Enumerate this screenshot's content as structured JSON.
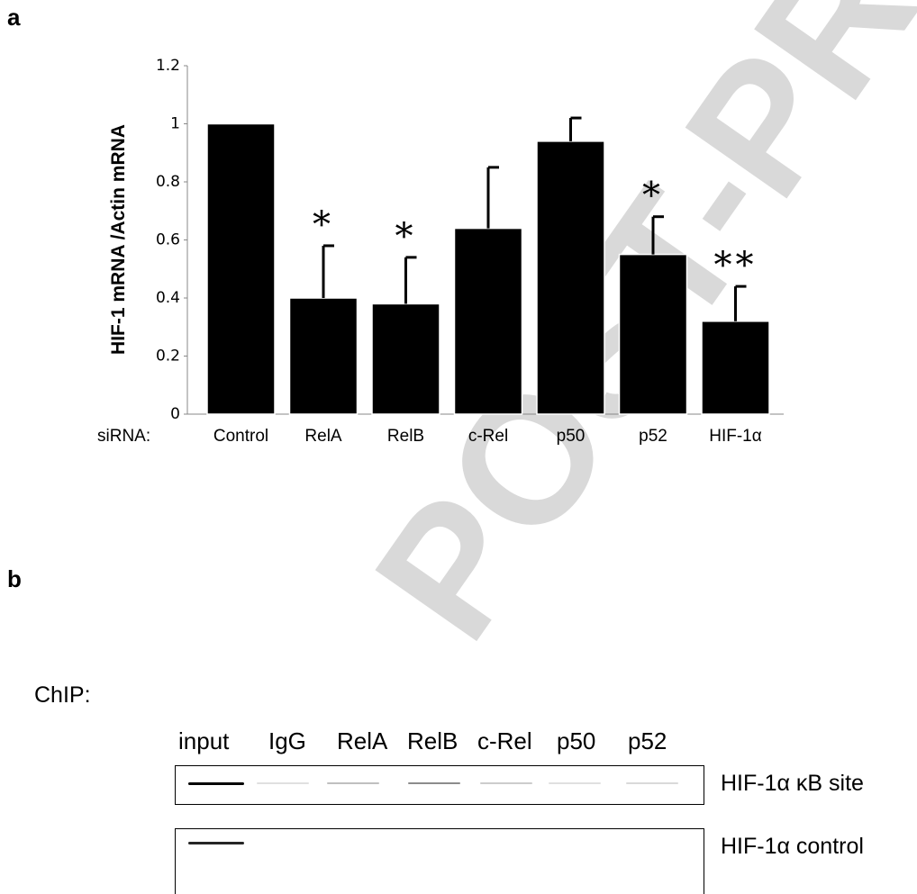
{
  "panel_a": {
    "label": "a"
  },
  "panel_b": {
    "label": "b"
  },
  "chart_data": {
    "type": "bar",
    "ylabel": "HIF-1 mRNA /Actin mRNA",
    "xprefix": "siRNA:",
    "categories": [
      "Control",
      "RelA",
      "RelB",
      "c-Rel",
      "p50",
      "p52",
      "HIF-1α"
    ],
    "values": [
      1.0,
      0.4,
      0.38,
      0.64,
      0.94,
      0.55,
      0.32
    ],
    "errors": [
      0.0,
      0.18,
      0.16,
      0.21,
      0.08,
      0.13,
      0.12
    ],
    "significance": [
      "",
      "*",
      "*",
      "",
      "",
      "*",
      "**"
    ],
    "ylim": [
      0,
      1.2
    ],
    "yticks": [
      "0",
      "0.2",
      "0.4",
      "0.6",
      "0.8",
      "1",
      "1.2"
    ],
    "bar_color": "#000000"
  },
  "chip": {
    "title": "ChIP:",
    "lanes": [
      "input",
      "IgG",
      "RelA",
      "RelB",
      "c-Rel",
      "p50",
      "p52"
    ],
    "rows": [
      {
        "label": "HIF-1α κB site",
        "intensities": [
          1.0,
          0.05,
          0.25,
          0.45,
          0.2,
          0.12,
          0.15
        ]
      },
      {
        "label": "HIF-1α control",
        "intensities": [
          0.85,
          0,
          0,
          0,
          0,
          0,
          0
        ]
      }
    ]
  },
  "watermark": {
    "text": "POST-PR",
    "color": "#d9d9d9"
  }
}
